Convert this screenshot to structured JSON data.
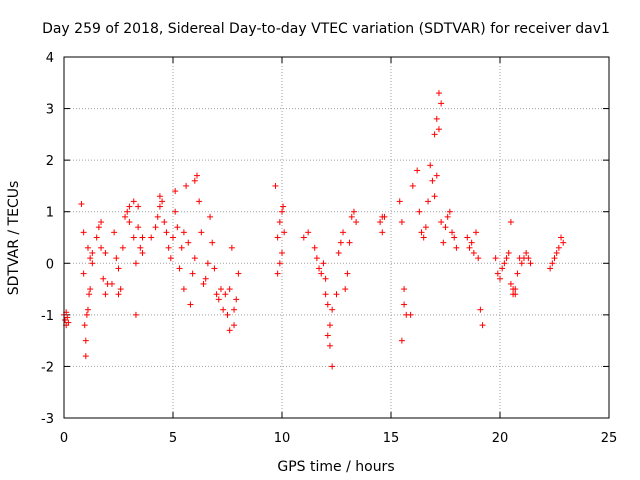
{
  "chart_data": {
    "type": "scatter",
    "title": "Day 259 of 2018, Sidereal Day-to-day VTEC variation (SDTVAR) for receiver dav1",
    "xlabel": "GPS time / hours",
    "ylabel": "SDTVAR / TECUs",
    "xlim": [
      0,
      25
    ],
    "ylim": [
      -3,
      4
    ],
    "xticks": [
      "0",
      "5",
      "10",
      "15",
      "20",
      "25"
    ],
    "yticks": [
      "-3",
      "-2",
      "-1",
      "0",
      "1",
      "2",
      "3",
      "4"
    ],
    "xtick_values": [
      0,
      5,
      10,
      15,
      20,
      25
    ],
    "ytick_values": [
      -3,
      -2,
      -1,
      0,
      1,
      2,
      3,
      4
    ],
    "grid": true,
    "marker": "+",
    "color": "#ff0000",
    "series": [
      {
        "name": "dav1",
        "x": [
          0.0,
          0.05,
          0.1,
          0.1,
          0.15,
          0.2,
          0.8,
          0.9,
          0.9,
          0.95,
          1.0,
          1.0,
          1.05,
          1.1,
          1.1,
          1.15,
          1.2,
          1.2,
          1.3,
          1.3,
          1.5,
          1.6,
          1.7,
          1.7,
          1.8,
          1.9,
          1.9,
          2.0,
          2.2,
          2.3,
          2.4,
          2.5,
          2.5,
          2.6,
          2.7,
          2.8,
          2.9,
          3.0,
          3.0,
          3.2,
          3.2,
          3.3,
          3.3,
          3.4,
          3.4,
          3.5,
          3.6,
          3.6,
          4.0,
          4.2,
          4.3,
          4.4,
          4.4,
          4.5,
          4.6,
          4.7,
          4.8,
          4.9,
          5.0,
          5.1,
          5.1,
          5.2,
          5.3,
          5.4,
          5.5,
          5.5,
          5.6,
          5.7,
          5.8,
          5.9,
          6.0,
          6.0,
          6.1,
          6.2,
          6.3,
          6.4,
          6.5,
          6.6,
          6.7,
          6.8,
          6.9,
          7.0,
          7.1,
          7.2,
          7.3,
          7.4,
          7.5,
          7.6,
          7.7,
          7.8,
          7.9,
          8.0,
          7.6,
          7.8,
          9.7,
          9.8,
          9.8,
          9.9,
          9.9,
          10.0,
          10.0,
          10.05,
          10.1,
          11.0,
          11.2,
          11.5,
          11.6,
          11.7,
          11.8,
          11.9,
          12.0,
          12.0,
          12.1,
          12.1,
          12.2,
          12.2,
          12.3,
          12.3,
          12.5,
          12.6,
          12.7,
          12.8,
          12.9,
          13.0,
          13.1,
          13.2,
          13.3,
          13.4,
          14.5,
          14.6,
          14.7,
          14.6,
          15.4,
          15.5,
          15.6,
          15.7,
          15.5,
          15.6,
          15.9,
          16.0,
          16.2,
          16.3,
          16.4,
          16.5,
          16.6,
          16.7,
          16.8,
          16.9,
          17.0,
          17.0,
          17.1,
          17.1,
          17.2,
          17.2,
          17.3,
          17.3,
          17.4,
          17.5,
          17.6,
          17.7,
          17.8,
          17.9,
          18.0,
          18.5,
          18.6,
          18.7,
          18.8,
          18.9,
          19.0,
          19.1,
          19.2,
          19.8,
          19.9,
          20.0,
          20.1,
          20.2,
          20.3,
          20.4,
          20.5,
          20.6,
          20.7,
          20.8,
          20.9,
          21.0,
          21.1,
          21.2,
          21.3,
          21.4,
          20.5,
          20.6,
          20.7,
          22.3,
          22.4,
          22.5,
          22.6,
          22.7,
          22.8,
          22.9
        ],
        "y": [
          -1.0,
          -1.1,
          -1.2,
          -0.95,
          -1.05,
          -1.15,
          1.15,
          0.6,
          -0.2,
          -1.2,
          -1.5,
          -1.8,
          -1.0,
          -0.9,
          0.3,
          -0.6,
          0.1,
          -0.5,
          0.0,
          0.2,
          0.5,
          0.7,
          0.8,
          0.3,
          -0.3,
          0.2,
          -0.6,
          -0.4,
          -0.4,
          0.6,
          0.1,
          -0.1,
          -0.6,
          -0.5,
          0.3,
          0.9,
          1.0,
          1.1,
          0.8,
          1.2,
          0.5,
          0.0,
          -1.0,
          1.1,
          0.7,
          0.3,
          0.2,
          0.5,
          0.5,
          0.7,
          0.9,
          1.1,
          1.3,
          1.2,
          0.8,
          0.6,
          0.3,
          0.1,
          0.5,
          1.0,
          1.4,
          0.7,
          -0.1,
          0.3,
          -0.5,
          0.6,
          1.5,
          0.4,
          -0.8,
          -0.2,
          0.1,
          1.6,
          1.7,
          1.2,
          0.6,
          -0.4,
          -0.3,
          0.0,
          0.9,
          0.4,
          -0.1,
          -0.6,
          -0.7,
          -0.5,
          -0.9,
          -0.6,
          -1.0,
          -0.5,
          0.3,
          -0.9,
          -0.7,
          -0.2,
          -1.3,
          -1.2,
          1.5,
          0.5,
          -0.2,
          0.0,
          0.8,
          1.0,
          0.2,
          1.1,
          0.6,
          0.5,
          0.6,
          0.3,
          0.1,
          -0.1,
          -0.2,
          0.0,
          -0.3,
          -0.6,
          -0.8,
          -1.4,
          -1.2,
          -1.6,
          -2.0,
          -0.9,
          -0.6,
          0.2,
          0.4,
          0.6,
          -0.5,
          -0.2,
          0.4,
          0.9,
          1.0,
          0.8,
          0.8,
          0.9,
          0.9,
          0.6,
          1.2,
          0.8,
          -0.5,
          -1.0,
          -1.5,
          -0.8,
          -1.0,
          1.5,
          1.8,
          1.0,
          0.6,
          0.5,
          0.7,
          1.2,
          1.9,
          1.6,
          1.3,
          2.5,
          2.8,
          1.7,
          2.6,
          3.3,
          3.1,
          0.8,
          0.4,
          0.7,
          0.9,
          1.0,
          0.6,
          0.5,
          0.3,
          0.5,
          0.3,
          0.4,
          0.2,
          0.6,
          0.1,
          -0.9,
          -1.2,
          0.1,
          -0.2,
          -0.3,
          -0.1,
          0.0,
          0.1,
          0.2,
          -0.4,
          -0.5,
          -0.6,
          -0.2,
          0.1,
          0.0,
          0.1,
          0.2,
          0.1,
          0.0,
          0.8,
          -0.6,
          -0.5,
          -0.1,
          0.0,
          0.1,
          0.2,
          0.3,
          0.5,
          0.4
        ]
      }
    ]
  }
}
